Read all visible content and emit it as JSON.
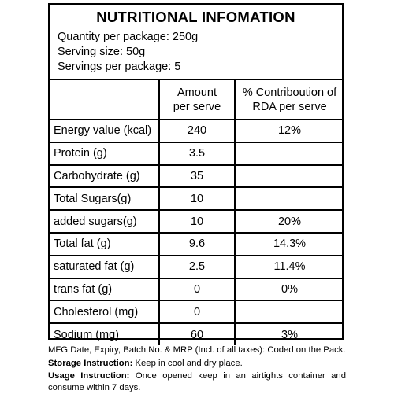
{
  "title": "NUTRITIONAL INFOMATION",
  "quantity_line": "Quantity per package: 250g",
  "serving_line": "Serving size: 50g",
  "servings_line": "Servings per package: 5",
  "table": {
    "headers": [
      "",
      "Amount per serve",
      "% Contriboutionof RDA per serve"
    ],
    "header_col2": "Amount per serve",
    "header_col3": "% Contriboution of RDA per serve",
    "rows": [
      {
        "nutrient": "Energy value (kcal)",
        "amount": "240",
        "rda": "12%"
      },
      {
        "nutrient": "Protein (g)",
        "amount": "3.5",
        "rda": ""
      },
      {
        "nutrient": "Carbohydrate (g)",
        "amount": "35",
        "rda": ""
      },
      {
        "nutrient": "Total Sugars(g)",
        "amount": "10",
        "rda": ""
      },
      {
        "nutrient": "added sugars(g)",
        "amount": "10",
        "rda": "20%"
      },
      {
        "nutrient": "Total fat (g)",
        "amount": "9.6",
        "rda": "14.3%"
      },
      {
        "nutrient": "saturated fat (g)",
        "amount": "2.5",
        "rda": "11.4%"
      },
      {
        "nutrient": "trans fat (g)",
        "amount": "0",
        "rda": "0%"
      },
      {
        "nutrient": "Cholesterol (mg)",
        "amount": "0",
        "rda": ""
      },
      {
        "nutrient": "Sodium (mg)",
        "amount": "60",
        "rda": "3%"
      }
    ]
  },
  "footer": {
    "mfg_line": "MFG Date, Expiry, Batch No. & MRP (Incl. of all taxes): Coded on the Pack.",
    "storage_label": "Storage Instruction:",
    "storage_text": " Keep in cool and dry place.",
    "usage_label": "Usage Instruction:",
    "usage_text": " Once opened keep in an airtights container and consume within 7 days."
  }
}
